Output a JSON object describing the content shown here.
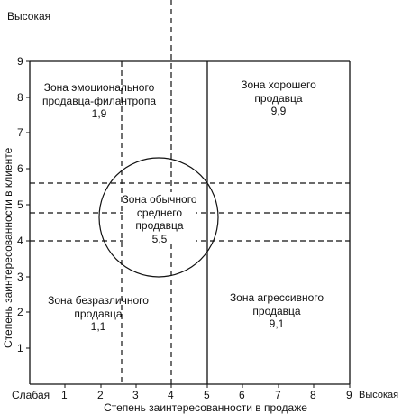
{
  "y_axis": {
    "high_label": "Высокая",
    "title": "Степень заинтересованности в клиенте",
    "ticks": [
      "1",
      "2",
      "3",
      "4",
      "5",
      "6",
      "7",
      "8",
      "9"
    ]
  },
  "x_axis": {
    "low_label": "Слабая",
    "high_label": "Высокая",
    "title": "Степень заинтересованности в продаже",
    "ticks": [
      "1",
      "2",
      "3",
      "4",
      "5",
      "6",
      "7",
      "8",
      "9"
    ]
  },
  "zones": {
    "top_left": {
      "line1": "Зона эмоционального",
      "line2": "продавца-филантропа",
      "score": "1,9"
    },
    "top_right": {
      "line1": "Зона хорошего",
      "line2": "продавца",
      "score": "9,9"
    },
    "center": {
      "line1": "Зона обычного",
      "line2": "среднего",
      "line3": "продавца",
      "score": "5,5"
    },
    "bottom_left": {
      "line1": "Зона безразличного",
      "line2": "продавца",
      "score": "1,1"
    },
    "bottom_right": {
      "line1": "Зона агрессивного",
      "line2": "продавца",
      "score": "9,1"
    }
  },
  "chart_data": {
    "type": "diagram",
    "x_range": [
      0,
      9
    ],
    "y_range": [
      0,
      9
    ],
    "dashed_vertical_lines_x": [
      2.6,
      4.0
    ],
    "solid_vertical_line_x": 5.0,
    "dashed_horizontal_lines_y": [
      4.0,
      4.8,
      5.6
    ],
    "circle_center": [
      3.65,
      4.8
    ],
    "circle_radius": 2.0
  }
}
